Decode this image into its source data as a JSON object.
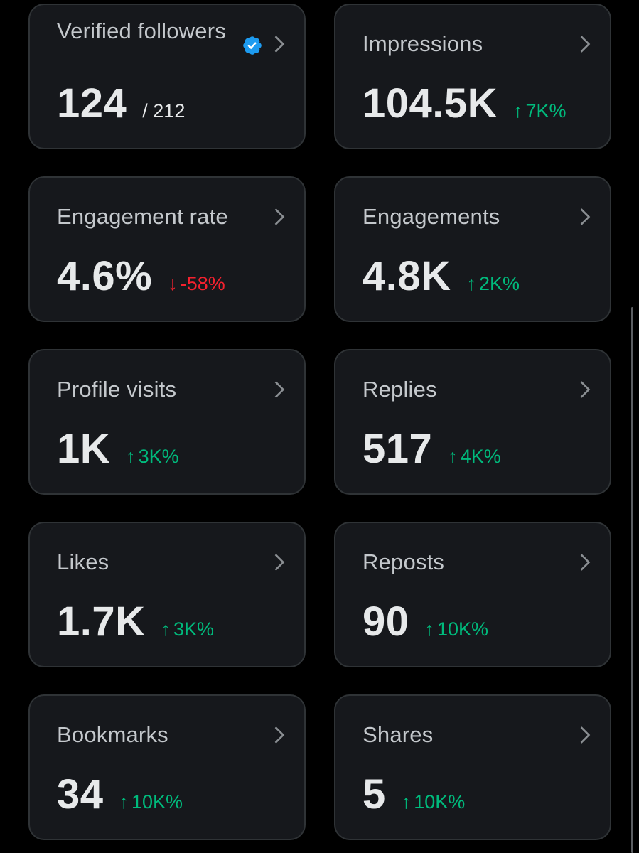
{
  "cards": [
    {
      "title": "Verified followers",
      "value": "124",
      "total": "/ 212",
      "verified_badge": true
    },
    {
      "title": "Impressions",
      "value": "104.5K",
      "delta_arrow": "↑",
      "delta_value": "7K%",
      "trend": "up"
    },
    {
      "title": "Engagement rate",
      "value": "4.6%",
      "delta_arrow": "↓",
      "delta_value": "-58%",
      "trend": "down"
    },
    {
      "title": "Engagements",
      "value": "4.8K",
      "delta_arrow": "↑",
      "delta_value": "2K%",
      "trend": "up"
    },
    {
      "title": "Profile visits",
      "value": "1K",
      "delta_arrow": "↑",
      "delta_value": "3K%",
      "trend": "up"
    },
    {
      "title": "Replies",
      "value": "517",
      "delta_arrow": "↑",
      "delta_value": "4K%",
      "trend": "up"
    },
    {
      "title": "Likes",
      "value": "1.7K",
      "delta_arrow": "↑",
      "delta_value": "3K%",
      "trend": "up"
    },
    {
      "title": "Reposts",
      "value": "90",
      "delta_arrow": "↑",
      "delta_value": "10K%",
      "trend": "up"
    },
    {
      "title": "Bookmarks",
      "value": "34",
      "delta_arrow": "↑",
      "delta_value": "10K%",
      "trend": "up"
    },
    {
      "title": "Shares",
      "value": "5",
      "delta_arrow": "↑",
      "delta_value": "10K%",
      "trend": "up"
    }
  ],
  "icons": {
    "chevron": "chevron-right-icon",
    "verified": "verified-badge-icon"
  },
  "colors": {
    "background": "#000000",
    "card_background": "#16181c",
    "card_border": "#2f3336",
    "title_text": "#c4c8cc",
    "value_text": "#e7e9ea",
    "positive": "#00ba7c",
    "negative": "#f4212e",
    "verified_blue": "#1d9bf0"
  }
}
